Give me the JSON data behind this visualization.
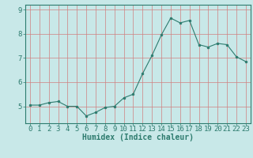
{
  "x": [
    0,
    1,
    2,
    3,
    4,
    5,
    6,
    7,
    8,
    9,
    10,
    11,
    12,
    13,
    14,
    15,
    16,
    17,
    18,
    19,
    20,
    21,
    22,
    23
  ],
  "y": [
    5.05,
    5.05,
    5.15,
    5.2,
    5.0,
    5.0,
    4.6,
    4.75,
    4.95,
    5.0,
    5.35,
    5.5,
    6.35,
    7.1,
    7.95,
    8.65,
    8.45,
    8.55,
    7.55,
    7.45,
    7.6,
    7.55,
    7.05,
    6.85
  ],
  "xlabel": "Humidex (Indice chaleur)",
  "xlim": [
    -0.5,
    23.5
  ],
  "ylim": [
    4.3,
    9.2
  ],
  "xticks": [
    0,
    1,
    2,
    3,
    4,
    5,
    6,
    7,
    8,
    9,
    10,
    11,
    12,
    13,
    14,
    15,
    16,
    17,
    18,
    19,
    20,
    21,
    22,
    23
  ],
  "yticks": [
    5,
    6,
    7,
    8,
    9
  ],
  "line_color": "#2d7b6e",
  "marker_color": "#2d7b6e",
  "bg_color": "#c8e8e8",
  "grid_color_v": "#d08080",
  "grid_color_h": "#d08080",
  "axis_color": "#2d7b6e",
  "tick_label_color": "#2d7b6e",
  "xlabel_color": "#2d7b6e",
  "xlabel_fontsize": 7,
  "tick_fontsize": 6.5
}
